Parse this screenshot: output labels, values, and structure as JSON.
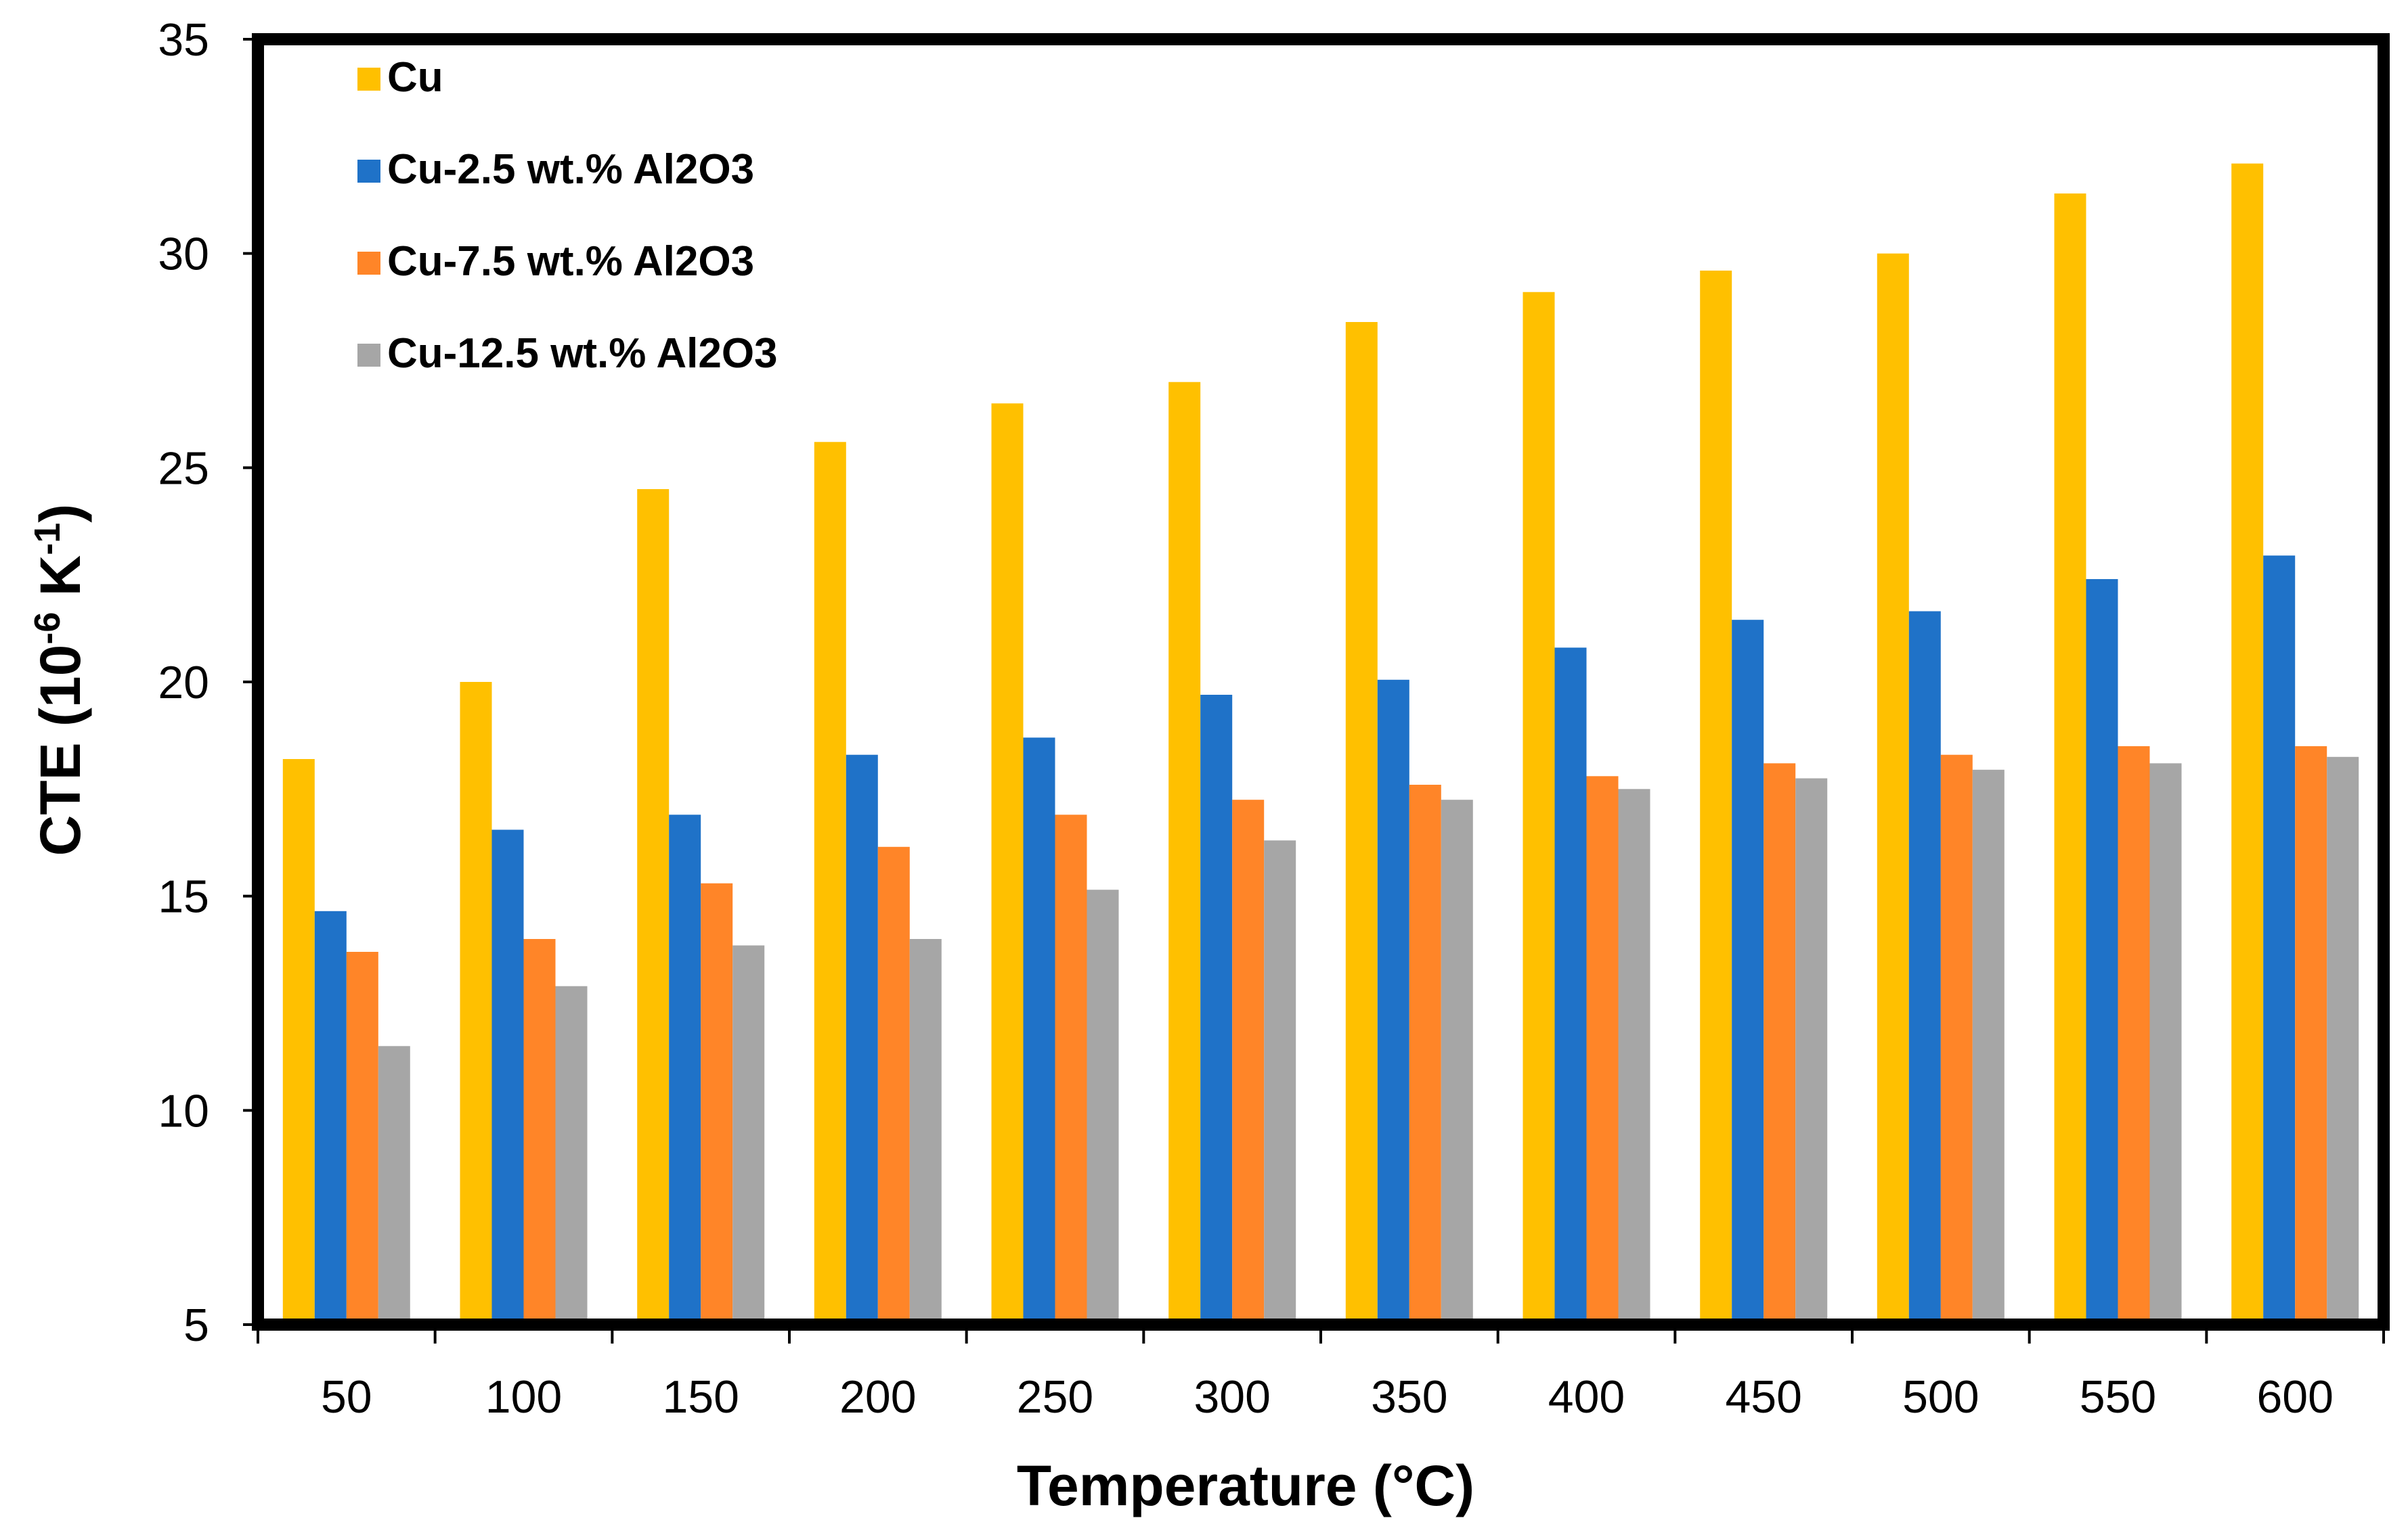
{
  "chart_data": {
    "type": "bar",
    "title": "",
    "xlabel": "Temperature (°C)",
    "ylabel": {
      "prefix": "CTE (10",
      "exp1": "-6",
      "mid": " K",
      "exp2": "-1",
      "suffix": ")"
    },
    "ylim": [
      5,
      35
    ],
    "yticks": [
      5,
      10,
      15,
      20,
      25,
      30,
      35
    ],
    "categories": [
      "50",
      "100",
      "150",
      "200",
      "250",
      "300",
      "350",
      "400",
      "450",
      "500",
      "550",
      "600"
    ],
    "legend_position": "top-left",
    "grid": false,
    "series": [
      {
        "name": "Cu",
        "color": "#FFC000",
        "values": [
          18.2,
          20.0,
          24.5,
          25.6,
          26.5,
          27.0,
          28.4,
          29.1,
          29.6,
          30.0,
          31.4,
          32.1
        ]
      },
      {
        "name": "Cu-2.5 wt.% Al2O3",
        "color": "#1F72C8",
        "values": [
          14.65,
          16.55,
          16.9,
          18.3,
          18.7,
          19.7,
          20.05,
          20.8,
          21.45,
          21.65,
          22.4,
          22.95
        ]
      },
      {
        "name": "Cu-7.5 wt.% Al2O3",
        "color": "#FF8528",
        "values": [
          13.7,
          14.0,
          15.3,
          16.15,
          16.9,
          17.25,
          17.6,
          17.8,
          18.1,
          18.3,
          18.5,
          18.5
        ]
      },
      {
        "name": "Cu-12.5 wt.% Al2O3",
        "color": "#A6A6A6",
        "values": [
          11.5,
          12.9,
          13.85,
          14.0,
          15.15,
          16.3,
          17.25,
          17.5,
          17.75,
          17.95,
          18.1,
          18.25
        ]
      }
    ]
  }
}
